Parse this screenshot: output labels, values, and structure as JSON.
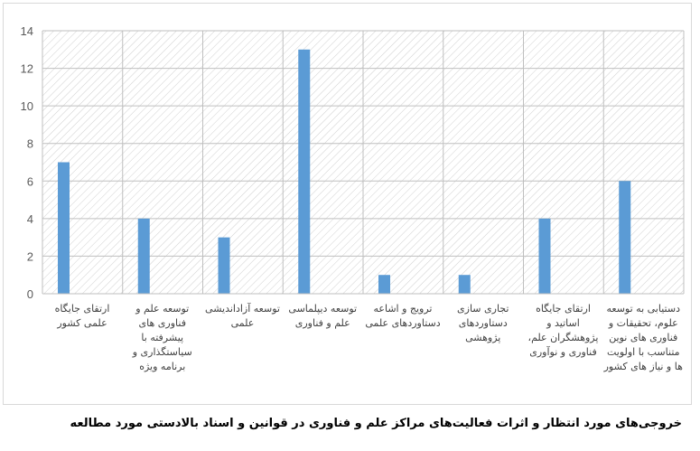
{
  "chart_data": {
    "type": "bar",
    "title": "خروجی‌های مورد انتظار و اثرات فعالیت‌های مراکز علم و فناوری در قوانین و اسناد بالادستی مورد مطالعه",
    "categories": [
      "ارتقای جایگاه علمی کشور",
      "توسعه علم و فناوری های پیشرفته با سیاستگذاری و برنامه ویژه",
      "توسعه آزاداندیشی علمی",
      "توسعه دیپلماسی علم و فناوری",
      "ترویج و اشاعه دستاوردهای علمی",
      "تجاری سازی دستاوردهای پژوهشی",
      "ارتقای جایگاه اساتید و پژوهشگران علم، فناوری و نوآوری",
      "دستیابی به توسعه علوم، تحقیقات و فناوری های نوین متناسب با اولویت ها و نیاز های کشور"
    ],
    "values": [
      7,
      4,
      3,
      13,
      1,
      1,
      4,
      6
    ],
    "yticks": [
      "0",
      "2",
      "4",
      "6",
      "8",
      "10",
      "12",
      "14"
    ],
    "ylim": [
      0,
      14
    ],
    "grid": true,
    "bar_color": "#5b9bd5",
    "background": "hatched"
  }
}
